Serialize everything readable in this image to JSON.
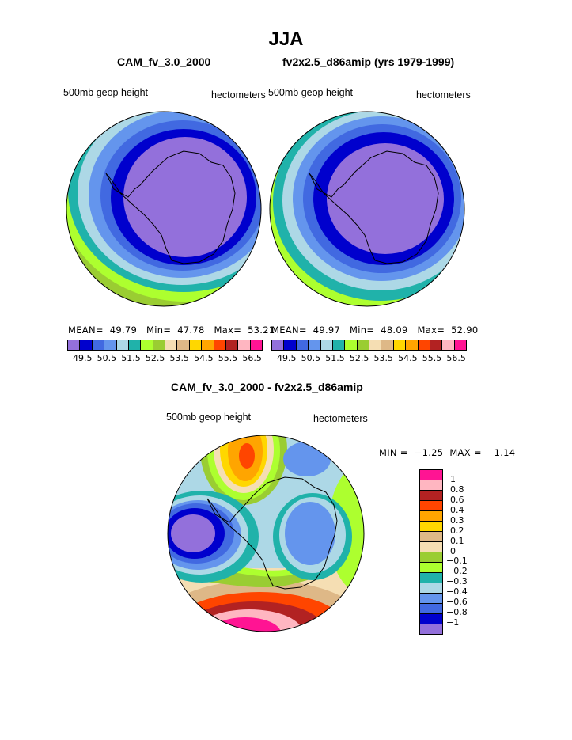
{
  "title": "JJA",
  "left_panel": {
    "subtitle": "CAM_fv_3.0_2000",
    "field_label": "500mb geop height",
    "units": "hectometers",
    "stats": {
      "mean_label": "MEAN=",
      "mean": "49.79",
      "min_label": "Min=",
      "min": "47.78",
      "max_label": "Max=",
      "max": "53.21"
    }
  },
  "right_panel": {
    "subtitle": "fv2x2.5_d86amip (yrs 1979-1999)",
    "field_label": "500mb geop height",
    "units": "hectometers",
    "stats": {
      "mean_label": "MEAN=",
      "mean": "49.97",
      "min_label": "Min=",
      "min": "48.09",
      "max_label": "Max=",
      "max": "52.90"
    }
  },
  "top_colorbar": {
    "colors": [
      "#9370db",
      "#0000cd",
      "#4169e1",
      "#6495ed",
      "#add8e6",
      "#20b2aa",
      "#adff2f",
      "#9acd32",
      "#f5deb3",
      "#deb887",
      "#ffd700",
      "#ffa500",
      "#ff4500",
      "#b22222",
      "#ffb6c1",
      "#ff1493"
    ],
    "ticks": [
      "49.5",
      "50.5",
      "51.5",
      "52.5",
      "53.5",
      "54.5",
      "55.5",
      "56.5"
    ]
  },
  "diff_panel": {
    "subtitle": "CAM_fv_3.0_2000 - fv2x2.5_d86amip",
    "field_label": "500mb geop height",
    "units": "hectometers",
    "stats": {
      "min_label": "MIN =",
      "min": "−1.25",
      "max_label": "MAX =",
      "max": "1.14"
    }
  },
  "diff_colorbar": {
    "colors": [
      "#ff1493",
      "#ffb6c1",
      "#b22222",
      "#ff4500",
      "#ffa500",
      "#ffd700",
      "#deb887",
      "#f5deb3",
      "#9acd32",
      "#adff2f",
      "#20b2aa",
      "#add8e6",
      "#6495ed",
      "#4169e1",
      "#0000cd",
      "#9370db"
    ],
    "ticks": [
      "1",
      "0.8",
      "0.6",
      "0.4",
      "0.3",
      "0.2",
      "0.1",
      "0",
      "−0.1",
      "−0.2",
      "−0.3",
      "−0.4",
      "−0.6",
      "−0.8",
      "−1"
    ]
  }
}
